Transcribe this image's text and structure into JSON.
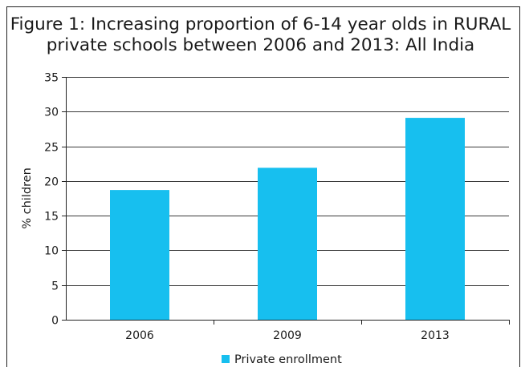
{
  "chart_data": {
    "type": "bar",
    "title_lines": [
      "Figure 1:  Increasing proportion of 6-14 year olds in RURAL",
      "private schools between 2006 and 2013: All India"
    ],
    "categories": [
      "2006",
      "2009",
      "2013"
    ],
    "series": [
      {
        "name": "Private enrollment",
        "values": [
          18.7,
          21.9,
          29.1
        ]
      }
    ],
    "xlabel": "",
    "ylabel": "% children",
    "ylim": [
      0,
      35
    ],
    "yticks": [
      0,
      5,
      10,
      15,
      20,
      25,
      30,
      35
    ],
    "grid": true,
    "legend": "bottom-center",
    "bar_color": "#17bfef",
    "grid_color": "#3a3a3a"
  }
}
